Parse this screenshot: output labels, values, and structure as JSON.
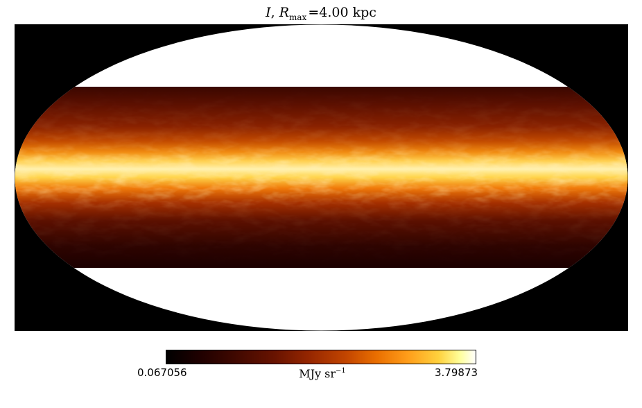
{
  "title": {
    "symbol": "I",
    "sep": ", ",
    "r_symbol": "R",
    "r_sub": "max",
    "r_value": "=4.00 kpc"
  },
  "colorbar": {
    "min_label": "0.067056",
    "max_label": "3.79873",
    "unit_main": "MJy sr",
    "unit_exp": "−1",
    "colormap": "afmhot"
  },
  "map": {
    "projection": "mollweide",
    "background": "#000000",
    "masked_color": "#ffffff",
    "valid_latitude_fraction": 0.59
  }
}
